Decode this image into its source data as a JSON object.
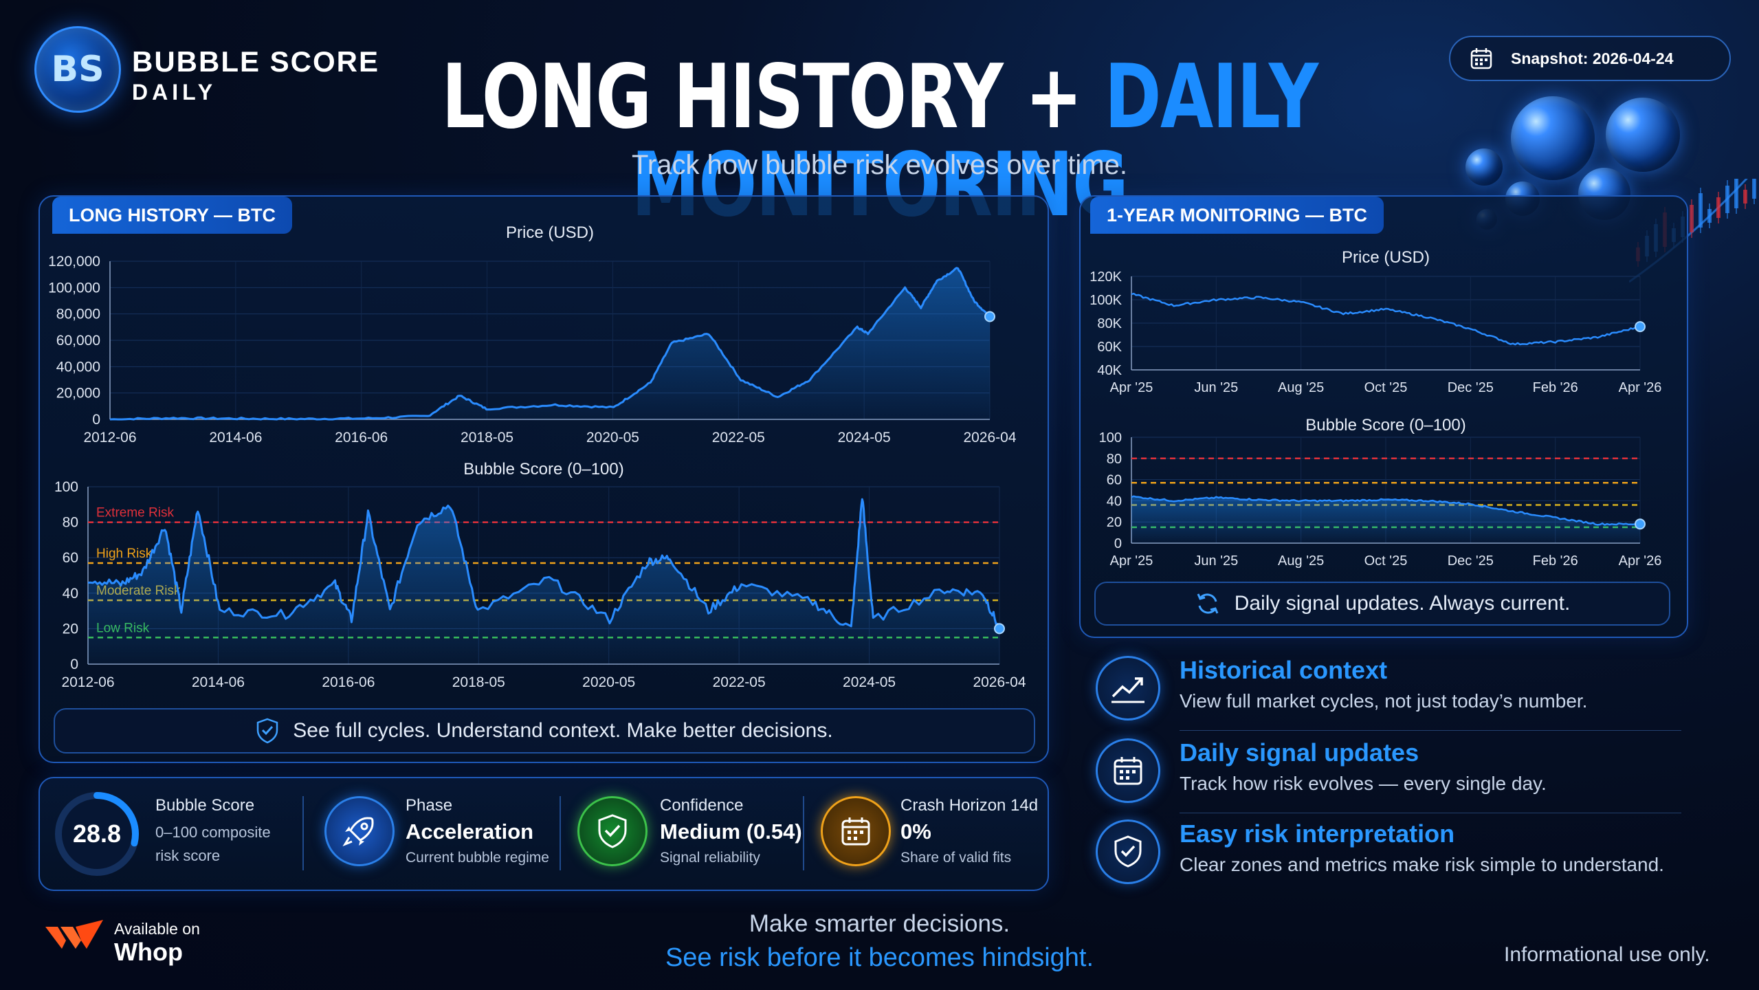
{
  "brand": {
    "logo_text": "BS",
    "line1": "BUBBLE SCORE",
    "line2": "DAILY"
  },
  "header": {
    "title_part1": "LONG HISTORY +",
    "title_part2": "DAILY MONITORING",
    "subtitle": "Track how bubble risk evolves over time."
  },
  "snapshot": {
    "label": "Snapshot: 2026-04-24",
    "icon": "calendar-icon"
  },
  "long_history": {
    "tag": "LONG HISTORY — BTC",
    "note": "See full cycles. Understand context. Make better decisions.",
    "note_icon": "shield-check-icon"
  },
  "monitoring": {
    "tag": "1-YEAR MONITORING — BTC",
    "note": "Daily signal updates. Always current.",
    "note_icon": "refresh-icon"
  },
  "colors": {
    "accent": "#1b8cff",
    "extreme": "#e0303a",
    "high": "#f0a21a",
    "moderate": "#d8b21e",
    "low": "#3cc24a"
  },
  "chart_data": [
    {
      "type": "area",
      "title": "Price (USD)",
      "x": [
        "2012-06",
        "2013-06",
        "2014-06",
        "2015-06",
        "2016-06",
        "2017-06",
        "2017-12",
        "2018-05",
        "2019-06",
        "2020-05",
        "2020-12",
        "2021-04",
        "2021-11",
        "2022-05",
        "2022-12",
        "2023-06",
        "2024-03",
        "2024-05",
        "2024-12",
        "2025-03",
        "2025-06",
        "2025-10",
        "2026-01",
        "2026-04"
      ],
      "values": [
        0,
        1000,
        600,
        300,
        700,
        2500,
        18000,
        8000,
        11000,
        9000,
        28000,
        58000,
        65000,
        30000,
        17000,
        30000,
        70000,
        65000,
        100000,
        85000,
        105000,
        115000,
        90000,
        78000
      ],
      "xticks": [
        "2012-06",
        "2014-06",
        "2016-06",
        "2018-05",
        "2020-05",
        "2022-05",
        "2024-05",
        "2026-04"
      ],
      "yticks": [
        "0",
        "20,000",
        "40,000",
        "60,000",
        "80,000",
        "100,000",
        "120,000"
      ],
      "ylim": [
        0,
        120000
      ]
    },
    {
      "type": "area",
      "title": "Bubble Score (0–100)",
      "x": [
        "2012-06",
        "2012-12",
        "2013-04",
        "2013-08",
        "2013-11",
        "2014-02",
        "2014-06",
        "2015-06",
        "2016-03",
        "2016-06",
        "2016-09",
        "2017-01",
        "2017-06",
        "2017-12",
        "2018-05",
        "2019-06",
        "2020-05",
        "2020-12",
        "2021-04",
        "2021-11",
        "2022-05",
        "2023-06",
        "2024-01",
        "2024-03",
        "2024-05",
        "2025-06",
        "2026-01",
        "2026-04"
      ],
      "values": [
        48,
        45,
        52,
        78,
        30,
        88,
        30,
        28,
        45,
        25,
        85,
        30,
        80,
        90,
        30,
        48,
        25,
        58,
        60,
        30,
        45,
        35,
        20,
        95,
        25,
        42,
        40,
        20
      ],
      "xticks": [
        "2012-06",
        "2014-06",
        "2016-06",
        "2018-05",
        "2020-05",
        "2022-05",
        "2024-05",
        "2026-04"
      ],
      "yticks": [
        "0",
        "20",
        "40",
        "60",
        "80",
        "100"
      ],
      "ylim": [
        0,
        100
      ],
      "zones": [
        {
          "label": "Extreme Risk",
          "value": 80
        },
        {
          "label": "High Risk",
          "value": 57
        },
        {
          "label": "Moderate Risk",
          "value": 36
        },
        {
          "label": "Low Risk",
          "value": 15
        }
      ]
    },
    {
      "type": "line",
      "title": "Price (USD)",
      "x": [
        "2025-04",
        "2025-05",
        "2025-06",
        "2025-07",
        "2025-08",
        "2025-09",
        "2025-10",
        "2025-11",
        "2025-12",
        "2026-01",
        "2026-02",
        "2026-03",
        "2026-04"
      ],
      "values": [
        105000,
        95000,
        100000,
        102000,
        98000,
        88000,
        92000,
        85000,
        75000,
        62000,
        64000,
        68000,
        77000
      ],
      "xticks": [
        "Apr '25",
        "Jun '25",
        "Aug '25",
        "Oct '25",
        "Dec '25",
        "Feb '26",
        "Apr '26"
      ],
      "yticks": [
        "40K",
        "60K",
        "80K",
        "100K",
        "120K"
      ],
      "ylim": [
        40000,
        120000
      ]
    },
    {
      "type": "area",
      "title": "Bubble Score (0–100)",
      "x": [
        "2025-04",
        "2025-05",
        "2025-06",
        "2025-07",
        "2025-08",
        "2025-09",
        "2025-10",
        "2025-11",
        "2025-12",
        "2026-01",
        "2026-02",
        "2026-03",
        "2026-04"
      ],
      "values": [
        44,
        40,
        43,
        41,
        40,
        40,
        41,
        40,
        37,
        30,
        24,
        18,
        18
      ],
      "xticks": [
        "Apr '25",
        "Jun '25",
        "Aug '25",
        "Oct '25",
        "Dec '25",
        "Feb '26",
        "Apr '26"
      ],
      "yticks": [
        "0",
        "20",
        "40",
        "60",
        "80",
        "100"
      ],
      "ylim": [
        0,
        100
      ],
      "zones": [
        {
          "value": 80
        },
        {
          "value": 57
        },
        {
          "value": 36
        },
        {
          "value": 15
        }
      ]
    }
  ],
  "kpis": [
    {
      "label": "Bubble Score",
      "value": "28.8",
      "sub1": "0–100 composite",
      "sub2": "risk score",
      "fill": 0.288
    },
    {
      "label": "Phase",
      "value": "Acceleration",
      "sub": "Current bubble regime",
      "icon": "rocket-icon"
    },
    {
      "label": "Confidence",
      "value": "Medium (0.54)",
      "sub": "Signal reliability",
      "icon": "shield-icon"
    },
    {
      "label": "Crash Horizon 14d",
      "value": "0%",
      "sub": "Share of valid fits",
      "icon": "calendar-icon"
    }
  ],
  "features": [
    {
      "title": "Historical context",
      "desc": "View full market cycles, not just today’s number.",
      "icon": "trend-chart-icon"
    },
    {
      "title": "Daily signal updates",
      "desc": "Track how risk evolves — every single day.",
      "icon": "calendar-icon"
    },
    {
      "title": "Easy risk interpretation",
      "desc": "Clear zones and metrics make risk simple to understand.",
      "icon": "shield-check-icon"
    }
  ],
  "footer": {
    "whop_line1": "Available on",
    "whop_line2": "Whop",
    "tagline1": "Make smarter decisions.",
    "tagline2": "See risk before it becomes hindsight.",
    "disclaimer": "Informational use only."
  }
}
